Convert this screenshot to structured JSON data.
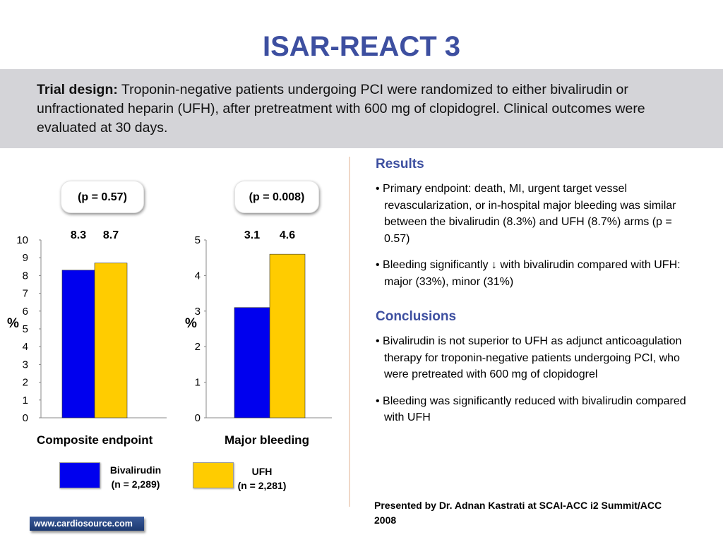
{
  "title": "ISAR-REACT 3",
  "design": {
    "label": "Trial design:",
    "text": " Troponin-negative patients undergoing PCI were randomized to either bivalirudin or unfractionated heparin (UFH), after pretreatment with 600 mg of clopidogrel. Clinical outcomes were evaluated at 30 days."
  },
  "colors": {
    "title": "#3d4fa0",
    "bivalirudin": "#0000ee",
    "ufh": "#ffcc00"
  },
  "chart_data": [
    {
      "type": "bar",
      "categories": [
        "Composite endpoint"
      ],
      "series": [
        {
          "name": "Bivalirudin (n = 2,289)",
          "values": [
            8.3
          ]
        },
        {
          "name": "UFH (n = 2,281)",
          "values": [
            8.7
          ]
        }
      ],
      "ylabel": "%",
      "ylim": [
        0,
        10
      ],
      "yticks": [
        0,
        1,
        2,
        3,
        4,
        5,
        6,
        7,
        8,
        9,
        10
      ],
      "value_labels": [
        "8.3",
        "8.7"
      ],
      "annotation": "(p = 0.57)",
      "xlabel": "Composite endpoint"
    },
    {
      "type": "bar",
      "categories": [
        "Major bleeding"
      ],
      "series": [
        {
          "name": "Bivalirudin (n = 2,289)",
          "values": [
            3.1
          ]
        },
        {
          "name": "UFH (n = 2,281)",
          "values": [
            4.6
          ]
        }
      ],
      "ylabel": "%",
      "ylim": [
        0,
        5
      ],
      "yticks": [
        0,
        1,
        2,
        3,
        4,
        5
      ],
      "value_labels": [
        "3.1",
        "4.6"
      ],
      "annotation": "(p = 0.008)",
      "xlabel": "Major bleeding"
    }
  ],
  "legend": {
    "bivalirudin": {
      "name": "Bivalirudin",
      "n": "(n = 2,289)"
    },
    "ufh": {
      "name": "UFH",
      "n": "(n = 2,281)"
    }
  },
  "results": {
    "heading": "Results",
    "bullets": [
      "• Primary endpoint: death, MI, urgent target vessel revascularization, or in-hospital major bleeding was similar between the bivalirudin (8.3%) and UFH (8.7%) arms (p = 0.57)",
      "• Bleeding significantly ↓ with bivalirudin compared with UFH: major (33%), minor (31%)"
    ]
  },
  "conclusions": {
    "heading": "Conclusions",
    "bullets": [
      "• Bivalirudin is not superior to UFH as adjunct anticoagulation therapy for troponin-negative patients undergoing PCI, who were pretreated with 600 mg of clopidogrel",
      "• Bleeding was significantly reduced with bivalirudin compared with UFH"
    ]
  },
  "presenter": "Presented by Dr. Adnan Kastrati at SCAI-ACC i2 Summit/ACC 2008",
  "footer": "www.cardiosource.com"
}
